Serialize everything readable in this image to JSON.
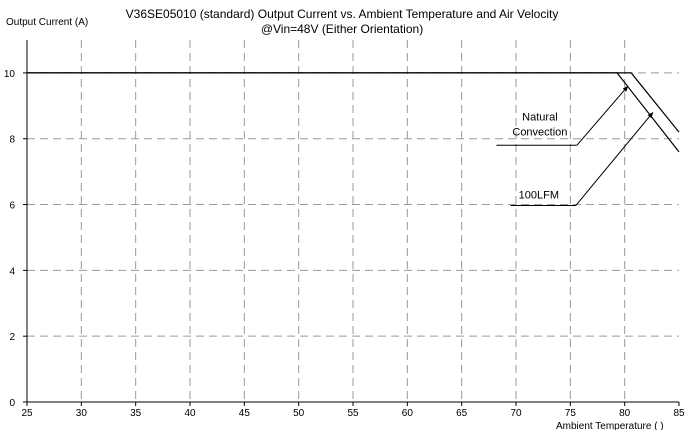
{
  "chart_data": {
    "type": "line",
    "title_line1": "V36SE05010 (standard)  Output Current vs. Ambient Temperature and Air Velocity",
    "title_line2": "@Vin=48V (Either Orientation)",
    "ylabel": "Output Current (A)",
    "xlabel": "Ambient Temperature (   )",
    "xlim": [
      25,
      85
    ],
    "ylim": [
      0,
      11
    ],
    "x_ticks": [
      25,
      30,
      35,
      40,
      45,
      50,
      55,
      60,
      65,
      70,
      75,
      80,
      85
    ],
    "y_ticks": [
      0,
      2,
      4,
      6,
      8,
      10
    ],
    "grid": true,
    "series": [
      {
        "name": "Natural Convection",
        "x": [
          25,
          79.3,
          85
        ],
        "y": [
          10,
          10,
          7.6
        ],
        "color": "#000000"
      },
      {
        "name": "100LFM",
        "x": [
          25,
          80.6,
          85
        ],
        "y": [
          10,
          10,
          8.2
        ],
        "color": "#000000"
      }
    ],
    "annotations": [
      {
        "lines": [
          "Natural",
          "Convection"
        ],
        "label_x": 72.2,
        "label_y": 8.55,
        "underline": [
          [
            68.2,
            7.8
          ],
          [
            75.6,
            7.8
          ]
        ],
        "arrow_from": [
          75.6,
          7.8
        ],
        "arrow_to": [
          80.3,
          9.6
        ]
      },
      {
        "lines": [
          "100LFM"
        ],
        "label_x": 72.1,
        "label_y": 6.18,
        "underline": [
          [
            69.5,
            5.97
          ],
          [
            75.5,
            5.97
          ]
        ],
        "arrow_from": [
          75.5,
          5.97
        ],
        "arrow_to": [
          82.6,
          8.8
        ]
      }
    ]
  }
}
